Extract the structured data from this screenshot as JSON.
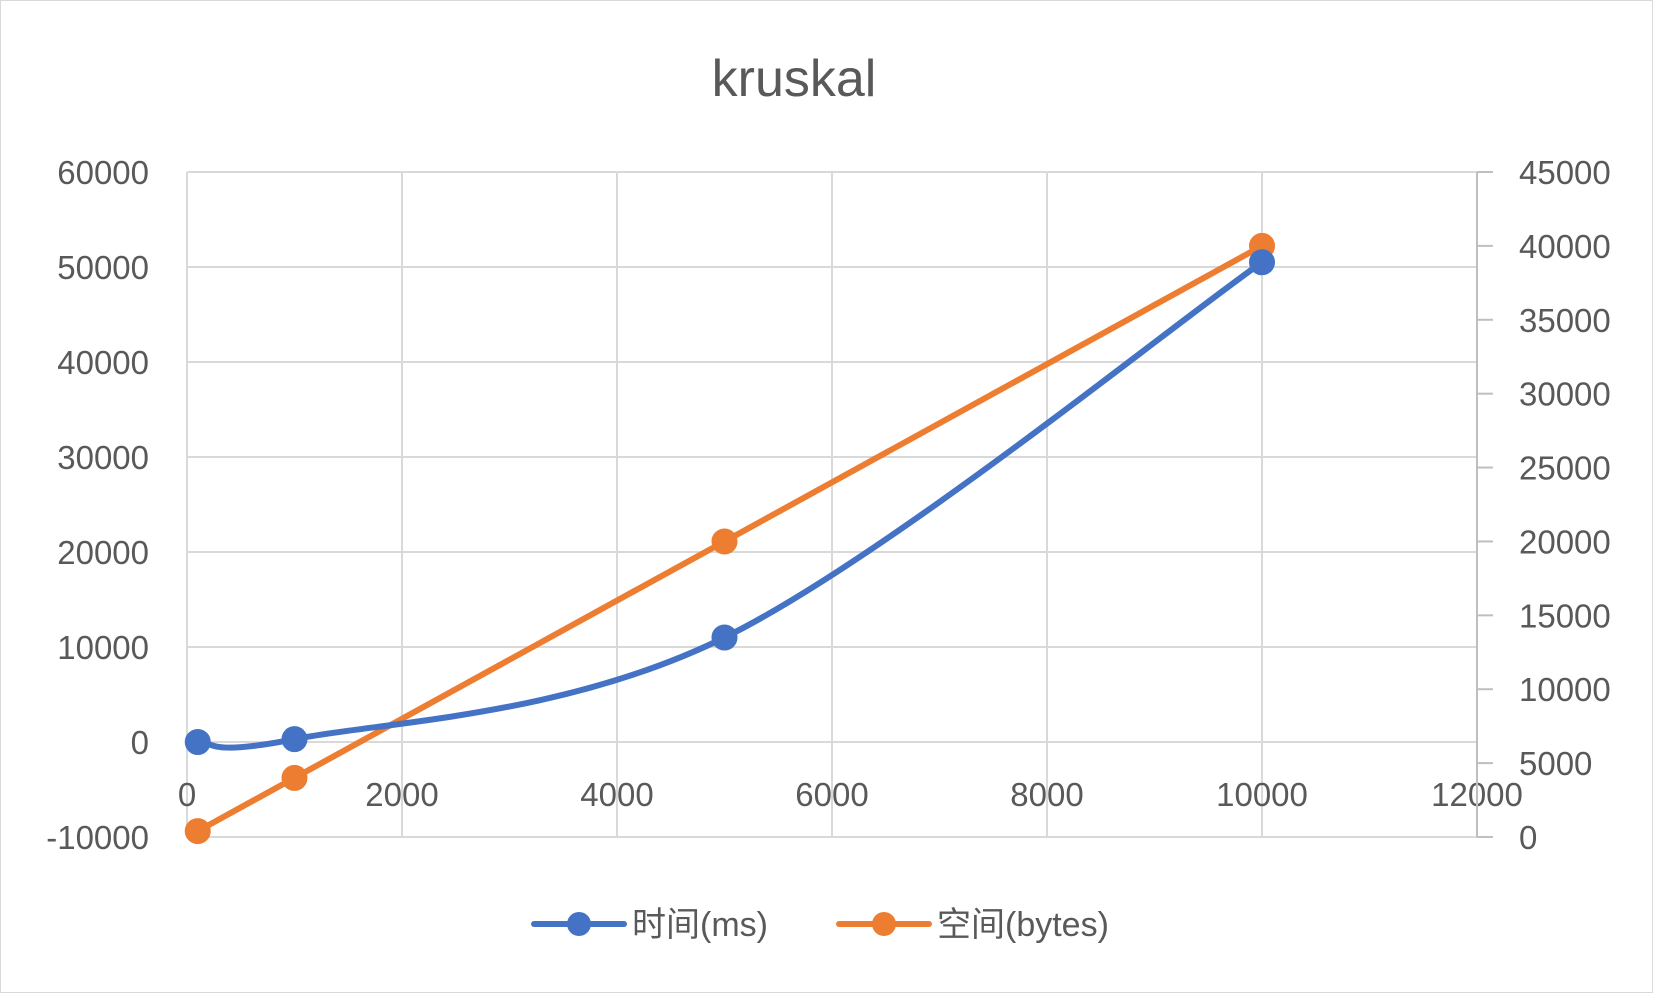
{
  "chart_data": {
    "type": "scatter",
    "title": "kruskal",
    "xlabel": "",
    "ylabel": "",
    "xlim": [
      0,
      12000
    ],
    "ylim": [
      -10000,
      60000
    ],
    "y2lim": [
      0,
      45000
    ],
    "x_ticks": [
      "0",
      "2000",
      "4000",
      "6000",
      "8000",
      "10000",
      "12000"
    ],
    "y_ticks": [
      "60000",
      "50000",
      "40000",
      "30000",
      "20000",
      "10000",
      "0",
      "-10000"
    ],
    "y2_ticks": [
      "45000",
      "40000",
      "35000",
      "30000",
      "25000",
      "20000",
      "15000",
      "10000",
      "5000",
      "0"
    ],
    "grid": true,
    "legend_position": "bottom",
    "series": [
      {
        "name": "时间(ms)",
        "axis": "left",
        "smooth": true,
        "color": "#4472C4",
        "x": [
          100,
          1000,
          5000,
          10000
        ],
        "y": [
          0,
          300,
          11000,
          50500
        ]
      },
      {
        "name": "空间(bytes)",
        "axis": "right",
        "smooth": false,
        "color": "#ED7D31",
        "x": [
          100,
          1000,
          5000,
          10000
        ],
        "y": [
          400,
          4000,
          20000,
          40000
        ]
      }
    ]
  }
}
